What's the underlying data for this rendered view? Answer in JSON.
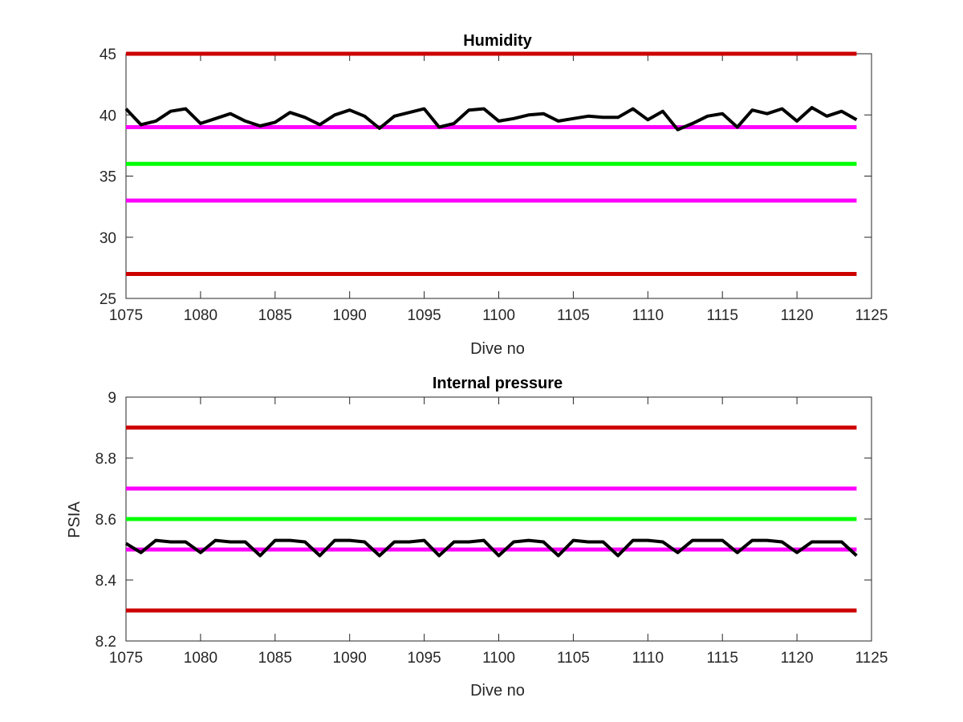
{
  "chart_data": [
    {
      "type": "line",
      "title": "Humidity",
      "xlabel": "Dive no",
      "ylabel": "",
      "xlim": [
        1075,
        1125
      ],
      "ylim": [
        25,
        45
      ],
      "xticks": [
        1075,
        1080,
        1085,
        1090,
        1095,
        1100,
        1105,
        1110,
        1115,
        1120,
        1125
      ],
      "yticks": [
        25,
        30,
        35,
        40,
        45
      ],
      "xtick_labels": [
        "1075",
        "1080",
        "1085",
        "1090",
        "1095",
        "1100",
        "1105",
        "1110",
        "1115",
        "1120",
        "1125"
      ],
      "ytick_labels": [
        "25",
        "30",
        "35",
        "40",
        "45"
      ],
      "grid": false,
      "x": [
        1075,
        1076,
        1077,
        1078,
        1079,
        1080,
        1081,
        1082,
        1083,
        1084,
        1085,
        1086,
        1087,
        1088,
        1089,
        1090,
        1091,
        1092,
        1093,
        1094,
        1095,
        1096,
        1097,
        1098,
        1099,
        1100,
        1101,
        1102,
        1103,
        1104,
        1105,
        1106,
        1107,
        1108,
        1109,
        1110,
        1111,
        1112,
        1113,
        1114,
        1115,
        1116,
        1117,
        1118,
        1119,
        1120,
        1121,
        1122,
        1123,
        1124
      ],
      "series": [
        {
          "color": "#000000",
          "values": [
            40.5,
            39.2,
            39.5,
            40.3,
            40.5,
            39.3,
            39.7,
            40.1,
            39.5,
            39.1,
            39.4,
            40.2,
            39.8,
            39.2,
            40.0,
            40.4,
            39.9,
            38.9,
            39.9,
            40.2,
            40.5,
            39.0,
            39.3,
            40.4,
            40.5,
            39.5,
            39.7,
            40.0,
            40.1,
            39.5,
            39.7,
            39.9,
            39.8,
            39.8,
            40.5,
            39.6,
            40.3,
            38.8,
            39.3,
            39.9,
            40.1,
            39.0,
            40.4,
            40.1,
            40.5,
            39.5,
            40.6,
            39.9,
            40.3,
            39.6
          ]
        }
      ],
      "reference_lines": [
        {
          "value": 45,
          "color": "#cc0000"
        },
        {
          "value": 39,
          "color": "#ff00ff"
        },
        {
          "value": 36,
          "color": "#00ff00"
        },
        {
          "value": 33,
          "color": "#ff00ff"
        },
        {
          "value": 27,
          "color": "#cc0000"
        }
      ]
    },
    {
      "type": "line",
      "title": "Internal pressure",
      "xlabel": "Dive no",
      "ylabel": "PSIA",
      "xlim": [
        1075,
        1125
      ],
      "ylim": [
        8.2,
        9
      ],
      "xticks": [
        1075,
        1080,
        1085,
        1090,
        1095,
        1100,
        1105,
        1110,
        1115,
        1120,
        1125
      ],
      "yticks": [
        8.2,
        8.4,
        8.6,
        8.8,
        9
      ],
      "xtick_labels": [
        "1075",
        "1080",
        "1085",
        "1090",
        "1095",
        "1100",
        "1105",
        "1110",
        "1115",
        "1120",
        "1125"
      ],
      "ytick_labels": [
        "8.2",
        "8.4",
        "8.6",
        "8.8",
        "9"
      ],
      "grid": false,
      "x": [
        1075,
        1076,
        1077,
        1078,
        1079,
        1080,
        1081,
        1082,
        1083,
        1084,
        1085,
        1086,
        1087,
        1088,
        1089,
        1090,
        1091,
        1092,
        1093,
        1094,
        1095,
        1096,
        1097,
        1098,
        1099,
        1100,
        1101,
        1102,
        1103,
        1104,
        1105,
        1106,
        1107,
        1108,
        1109,
        1110,
        1111,
        1112,
        1113,
        1114,
        1115,
        1116,
        1117,
        1118,
        1119,
        1120,
        1121,
        1122,
        1123,
        1124
      ],
      "series": [
        {
          "color": "#000000",
          "values": [
            8.52,
            8.49,
            8.53,
            8.525,
            8.525,
            8.49,
            8.53,
            8.525,
            8.525,
            8.48,
            8.53,
            8.53,
            8.525,
            8.48,
            8.53,
            8.53,
            8.525,
            8.48,
            8.525,
            8.525,
            8.53,
            8.48,
            8.525,
            8.525,
            8.53,
            8.48,
            8.525,
            8.53,
            8.525,
            8.48,
            8.53,
            8.525,
            8.525,
            8.48,
            8.53,
            8.53,
            8.525,
            8.49,
            8.53,
            8.53,
            8.53,
            8.49,
            8.53,
            8.53,
            8.525,
            8.49,
            8.525,
            8.525,
            8.525,
            8.48
          ]
        }
      ],
      "reference_lines": [
        {
          "value": 8.9,
          "color": "#cc0000"
        },
        {
          "value": 8.7,
          "color": "#ff00ff"
        },
        {
          "value": 8.6,
          "color": "#00ff00"
        },
        {
          "value": 8.5,
          "color": "#ff00ff"
        },
        {
          "value": 8.3,
          "color": "#cc0000"
        }
      ]
    }
  ]
}
